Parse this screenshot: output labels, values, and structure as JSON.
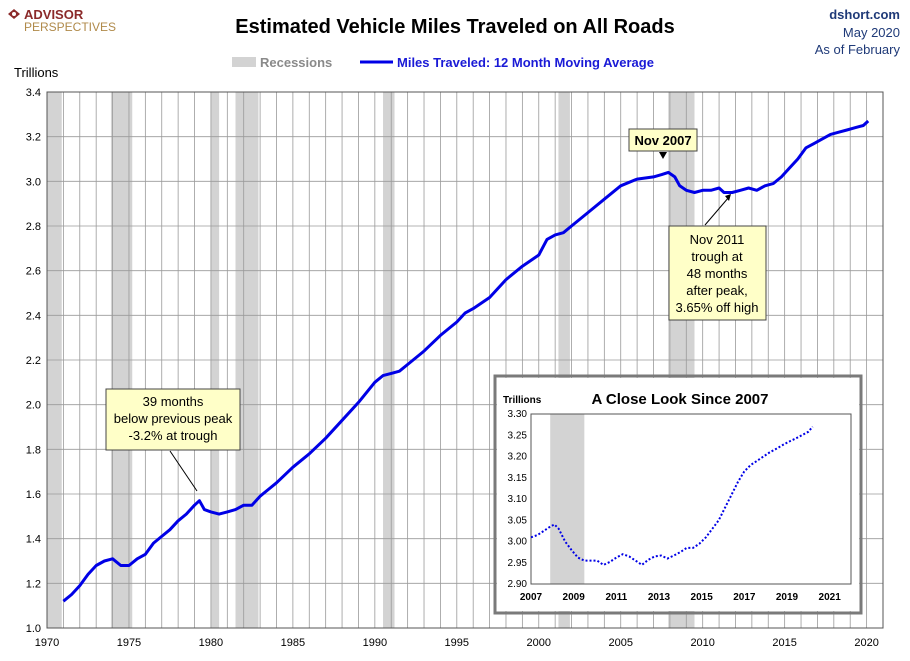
{
  "brand": {
    "line1": "ADVISOR",
    "line2": "PERSPECTIVES",
    "color": "#8b2a2a"
  },
  "source": {
    "site": "dshort.com",
    "date": "May 2020",
    "as_of": "As of February"
  },
  "colors": {
    "line": "#0000e6",
    "recession": "#d3d3d3",
    "annotation_bg": "#ffffc8",
    "grid": "#9a9a9a"
  },
  "chart_data": [
    {
      "type": "line",
      "title": "Estimated Vehicle Miles Traveled on All Roads",
      "ylabel": "Trillions",
      "xlabel": "",
      "xlim": [
        1970,
        2021
      ],
      "ylim": [
        1.0,
        3.4
      ],
      "grid": true,
      "legend_placement": "top-center",
      "legend": [
        {
          "label": "Recessions",
          "kind": "band",
          "color": "#d3d3d3"
        },
        {
          "label": "Miles Traveled: 12 Month Moving Average",
          "kind": "line",
          "color": "#0000e6"
        }
      ],
      "x_ticks": [
        1970,
        1975,
        1980,
        1985,
        1990,
        1995,
        2000,
        2005,
        2010,
        2015,
        2020
      ],
      "y_ticks": [
        1.0,
        1.2,
        1.4,
        1.6,
        1.8,
        2.0,
        2.2,
        2.4,
        2.6,
        2.8,
        3.0,
        3.2,
        3.4
      ],
      "recessions": [
        [
          1970.0,
          1970.9
        ],
        [
          1973.9,
          1975.2
        ],
        [
          1980.0,
          1980.5
        ],
        [
          1981.5,
          1982.9
        ],
        [
          1990.5,
          1991.2
        ],
        [
          2001.2,
          2001.9
        ],
        [
          2007.9,
          2009.5
        ]
      ],
      "series": [
        {
          "name": "Miles Traveled: 12 Month Moving Average",
          "x": [
            1971.0,
            1971.5,
            1972.0,
            1972.5,
            1973.0,
            1973.5,
            1974.0,
            1974.5,
            1975.0,
            1975.5,
            1976.0,
            1976.5,
            1977.0,
            1977.5,
            1978.0,
            1978.5,
            1979.0,
            1979.3,
            1979.6,
            1980.0,
            1980.5,
            1981.0,
            1981.5,
            1982.0,
            1982.5,
            1983.0,
            1983.5,
            1984.0,
            1985.0,
            1986.0,
            1987.0,
            1988.0,
            1989.0,
            1990.0,
            1990.5,
            1991.0,
            1991.5,
            1992.0,
            1993.0,
            1994.0,
            1995.0,
            1995.5,
            1996.0,
            1997.0,
            1998.0,
            1999.0,
            2000.0,
            2000.5,
            2001.0,
            2001.5,
            2002.0,
            2003.0,
            2004.0,
            2005.0,
            2006.0,
            2007.0,
            2007.5,
            2007.9,
            2008.3,
            2008.6,
            2009.0,
            2009.5,
            2010.0,
            2010.5,
            2011.0,
            2011.3,
            2011.8,
            2012.3,
            2012.8,
            2013.3,
            2013.8,
            2014.3,
            2014.8,
            2015.3,
            2015.8,
            2016.3,
            2016.8,
            2017.3,
            2017.8,
            2018.3,
            2018.8,
            2019.3,
            2019.8,
            2020.1
          ],
          "values": [
            1.12,
            1.15,
            1.19,
            1.24,
            1.28,
            1.3,
            1.31,
            1.28,
            1.28,
            1.31,
            1.33,
            1.38,
            1.41,
            1.44,
            1.48,
            1.51,
            1.55,
            1.57,
            1.53,
            1.52,
            1.51,
            1.52,
            1.53,
            1.55,
            1.55,
            1.59,
            1.62,
            1.65,
            1.72,
            1.78,
            1.85,
            1.93,
            2.01,
            2.1,
            2.13,
            2.14,
            2.15,
            2.18,
            2.24,
            2.31,
            2.37,
            2.41,
            2.43,
            2.48,
            2.56,
            2.62,
            2.67,
            2.74,
            2.76,
            2.77,
            2.8,
            2.86,
            2.92,
            2.98,
            3.01,
            3.02,
            3.03,
            3.04,
            3.02,
            2.98,
            2.96,
            2.95,
            2.96,
            2.96,
            2.97,
            2.95,
            2.95,
            2.96,
            2.97,
            2.96,
            2.98,
            2.99,
            3.02,
            3.06,
            3.1,
            3.15,
            3.17,
            3.19,
            3.21,
            3.22,
            3.23,
            3.24,
            3.25,
            3.27
          ]
        }
      ],
      "annotations": [
        {
          "text": "Nov 2007",
          "x": 2007.85,
          "y": 3.04
        },
        {
          "text": "Nov 2011\ntrough at\n48 months\nafter peak,\n3.65% off high",
          "x": 2011.8,
          "y": 2.95
        },
        {
          "text": "39 months\nbelow previous peak\n-3.2% at trough",
          "x": 1979.4,
          "y": 1.57
        }
      ]
    },
    {
      "type": "line",
      "title": "A Close Look Since 2007",
      "ylabel": "Trillions",
      "xlim": [
        2007,
        2022
      ],
      "ylim": [
        2.9,
        3.3
      ],
      "grid": false,
      "x_ticks": [
        2007,
        2009,
        2011,
        2013,
        2015,
        2017,
        2019,
        2021
      ],
      "y_ticks": [
        2.9,
        2.95,
        3.0,
        3.05,
        3.1,
        3.15,
        3.2,
        3.25,
        3.3
      ],
      "y_tick_labels": [
        "2.90",
        "2.95",
        "3.00",
        "3.05",
        "3.10",
        "3.15",
        "3.20",
        "3.25",
        "3.30"
      ],
      "recessions": [
        [
          2007.9,
          2009.5
        ]
      ],
      "series": [
        {
          "name": "",
          "x": [
            2007.0,
            2007.3,
            2007.6,
            2007.9,
            2008.1,
            2008.3,
            2008.6,
            2008.9,
            2009.2,
            2009.5,
            2009.8,
            2010.1,
            2010.4,
            2010.7,
            2011.0,
            2011.3,
            2011.6,
            2011.9,
            2012.2,
            2012.5,
            2012.8,
            2013.1,
            2013.4,
            2013.7,
            2014.0,
            2014.3,
            2014.6,
            2014.9,
            2015.2,
            2015.5,
            2015.8,
            2016.1,
            2016.4,
            2016.7,
            2017.0,
            2017.3,
            2017.6,
            2017.9,
            2018.2,
            2018.5,
            2018.8,
            2019.1,
            2019.4,
            2019.7,
            2020.0,
            2020.2
          ],
          "values": [
            3.01,
            3.015,
            3.025,
            3.035,
            3.04,
            3.03,
            3.0,
            2.98,
            2.962,
            2.955,
            2.955,
            2.955,
            2.945,
            2.952,
            2.962,
            2.97,
            2.965,
            2.955,
            2.945,
            2.957,
            2.965,
            2.967,
            2.96,
            2.967,
            2.975,
            2.985,
            2.985,
            2.995,
            3.01,
            3.03,
            3.05,
            3.08,
            3.11,
            3.14,
            3.165,
            3.18,
            3.19,
            3.2,
            3.21,
            3.218,
            3.227,
            3.235,
            3.242,
            3.25,
            3.258,
            3.27
          ]
        }
      ]
    }
  ]
}
